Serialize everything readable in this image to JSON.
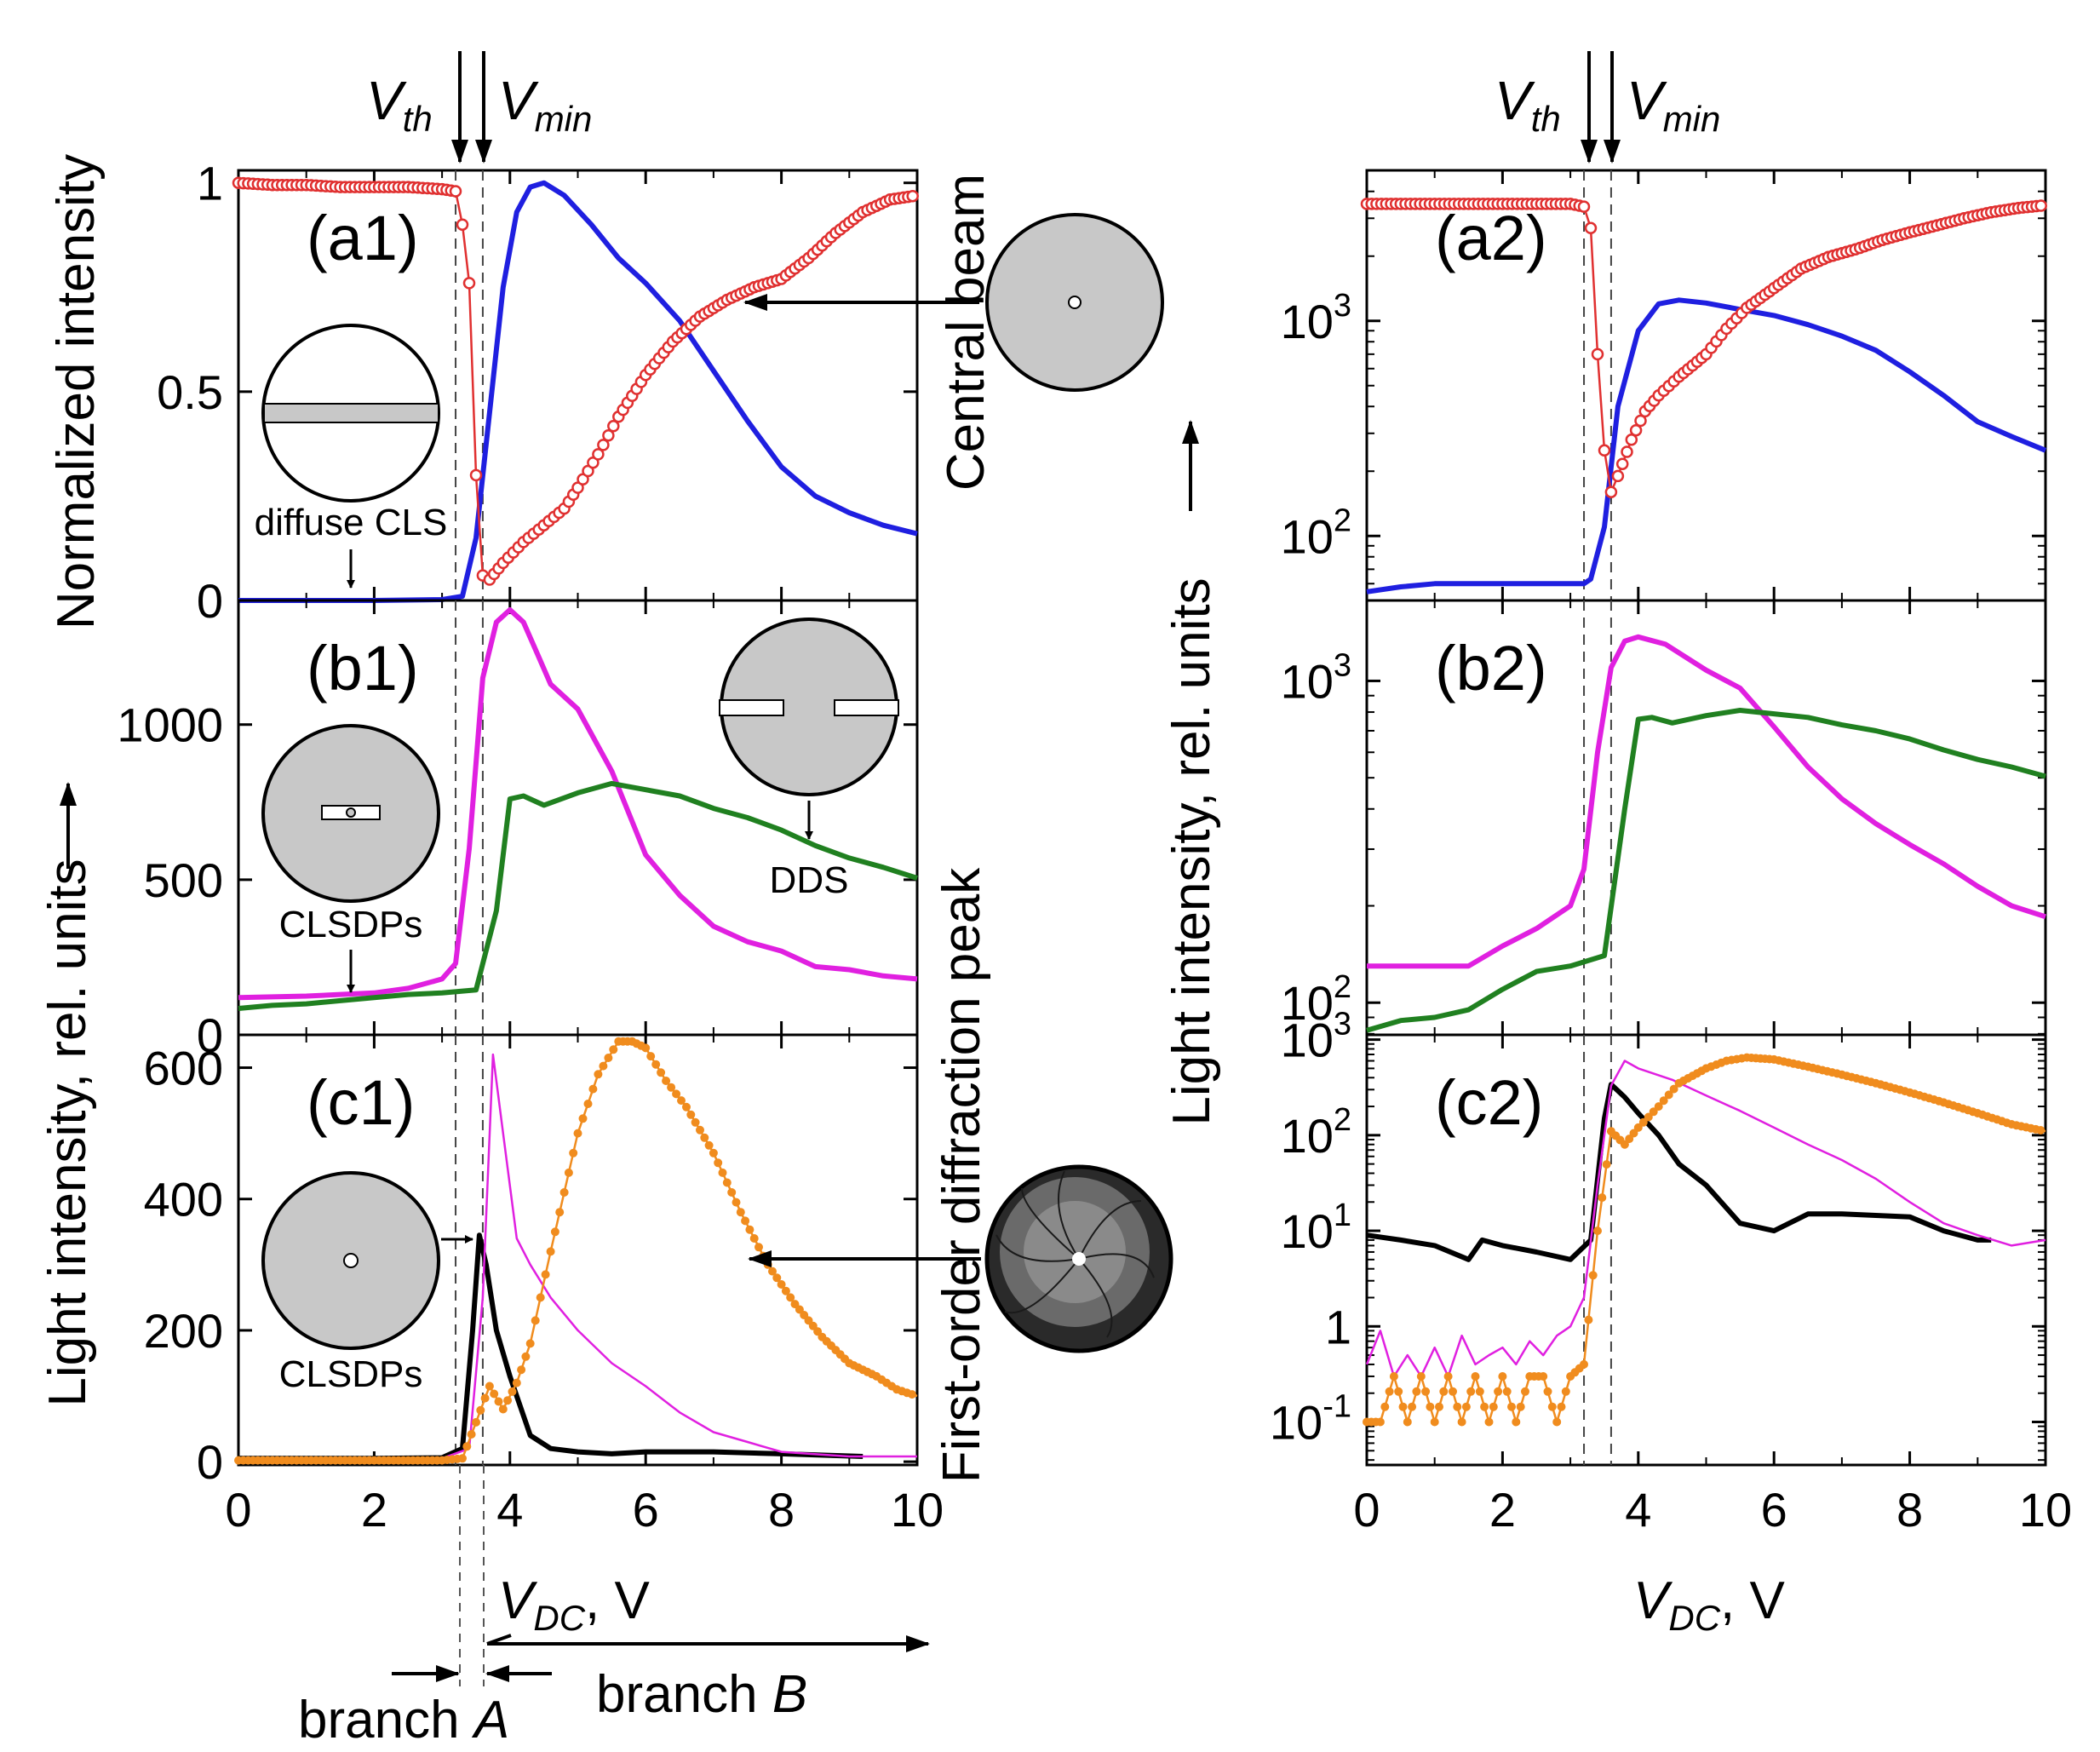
{
  "vertical_markers": {
    "vth": "V",
    "vth_sub": "th",
    "vmin": "V",
    "vmin_sub": "min",
    "vth_value": 3.2,
    "vmin_value": 3.6
  },
  "left_column": {
    "ylabel_top": "Normalized intensity",
    "ylabel_bottom": "Light intensity, rel. units",
    "xlabel_main": "V",
    "xlabel_sub": "DC",
    "xlabel_unit": ", V",
    "branch_a": "branch ",
    "branch_a_letter": "A",
    "branch_b": "branch ",
    "branch_b_letter": "B"
  },
  "right_column": {
    "ylabel": "Light intensity, rel. units",
    "xlabel_main": "V",
    "xlabel_sub": "DC",
    "xlabel_unit": ", V"
  },
  "side_labels": {
    "central_beam": "Central beam",
    "first_order": "First-order diffraction peak"
  },
  "annotations": {
    "diffuse_cls": "diffuse CLS",
    "clsdps_b1": "CLSDPs",
    "clsdps_c1": "CLSDPs",
    "dds": "DDS"
  },
  "colors": {
    "blue": "#1f1fe0",
    "red": "#e03030",
    "magenta": "#e020e0",
    "green": "#208020",
    "black": "#000000",
    "orange": "#f08c1e",
    "disk": "#c8c8c8"
  },
  "chart_data": [
    {
      "id": "a1",
      "panel_label": "(a1)",
      "type": "line",
      "xlim": [
        0,
        10
      ],
      "ylim": [
        0,
        1.03
      ],
      "yticks": [
        {
          "v": 0,
          "label": "0"
        },
        {
          "v": 0.5,
          "label": "0.5"
        },
        {
          "v": 1,
          "label": "1"
        }
      ],
      "series": [
        {
          "name": "central beam (blue)",
          "color": "#1f1fe0",
          "x": [
            0,
            1,
            2,
            3,
            3.3,
            3.5,
            3.7,
            3.9,
            4.1,
            4.3,
            4.5,
            4.8,
            5.2,
            5.6,
            6,
            6.5,
            7,
            7.5,
            8,
            8.5,
            9,
            9.5,
            10
          ],
          "y": [
            0,
            0,
            0,
            0.002,
            0.01,
            0.15,
            0.45,
            0.75,
            0.93,
            0.99,
            1,
            0.97,
            0.9,
            0.82,
            0.76,
            0.67,
            0.55,
            0.43,
            0.32,
            0.25,
            0.21,
            0.18,
            0.16
          ]
        },
        {
          "name": "central beam (red markers)",
          "color": "#e03030",
          "marker": true,
          "x": [
            0,
            0.5,
            1,
            1.5,
            2,
            2.5,
            3,
            3.2,
            3.3,
            3.4,
            3.5,
            3.6,
            3.7,
            3.9,
            4.2,
            4.5,
            4.8,
            5,
            5.3,
            5.6,
            6,
            6.4,
            6.8,
            7.2,
            7.6,
            8,
            8.4,
            8.8,
            9.2,
            9.6,
            10
          ],
          "y": [
            1,
            0.995,
            0.995,
            0.99,
            0.99,
            0.99,
            0.985,
            0.98,
            0.9,
            0.76,
            0.3,
            0.06,
            0.05,
            0.09,
            0.14,
            0.18,
            0.22,
            0.27,
            0.35,
            0.44,
            0.54,
            0.62,
            0.68,
            0.72,
            0.75,
            0.77,
            0.82,
            0.88,
            0.93,
            0.96,
            0.97
          ]
        }
      ]
    },
    {
      "id": "b1",
      "panel_label": "(b1)",
      "type": "line",
      "xlim": [
        0,
        10
      ],
      "ylim": [
        0,
        1400
      ],
      "yticks": [
        {
          "v": 0,
          "label": "0"
        },
        {
          "v": 500,
          "label": "500"
        },
        {
          "v": 1000,
          "label": "1000"
        }
      ],
      "series": [
        {
          "name": "magenta",
          "color": "#e020e0",
          "x": [
            0,
            1,
            2,
            2.5,
            3,
            3.2,
            3.4,
            3.6,
            3.8,
            4,
            4.2,
            4.4,
            4.6,
            5,
            5.5,
            6,
            6.5,
            7,
            7.5,
            8,
            8.5,
            9,
            9.5,
            10
          ],
          "y": [
            120,
            125,
            135,
            150,
            180,
            230,
            600,
            1150,
            1330,
            1370,
            1330,
            1230,
            1130,
            1050,
            850,
            580,
            450,
            350,
            300,
            270,
            220,
            210,
            190,
            180
          ]
        },
        {
          "name": "green",
          "color": "#208020",
          "x": [
            0,
            0.5,
            1,
            1.5,
            2,
            2.5,
            3,
            3.5,
            3.8,
            4,
            4.2,
            4.5,
            5,
            5.5,
            6,
            6.5,
            7,
            7.5,
            8,
            8.5,
            9,
            9.5,
            10
          ],
          "y": [
            85,
            95,
            100,
            110,
            120,
            130,
            135,
            145,
            400,
            760,
            770,
            740,
            780,
            810,
            790,
            770,
            730,
            700,
            660,
            610,
            570,
            540,
            505
          ]
        }
      ]
    },
    {
      "id": "c1",
      "panel_label": "(c1)",
      "type": "line",
      "xlim": [
        0,
        10
      ],
      "ylim": [
        -5,
        650
      ],
      "yticks": [
        {
          "v": 0,
          "label": "0"
        },
        {
          "v": 200,
          "label": "200"
        },
        {
          "v": 400,
          "label": "400"
        },
        {
          "v": 600,
          "label": "600"
        }
      ],
      "series": [
        {
          "name": "black",
          "color": "#000000",
          "x": [
            0,
            1,
            2,
            3,
            3.3,
            3.45,
            3.55,
            3.65,
            3.8,
            4,
            4.3,
            4.6,
            5,
            5.5,
            6,
            7,
            8,
            9.2
          ],
          "y": [
            5,
            5,
            5,
            6,
            20,
            200,
            345,
            300,
            200,
            130,
            40,
            20,
            15,
            12,
            15,
            15,
            12,
            8
          ]
        },
        {
          "name": "magenta thin",
          "color": "#e020e0",
          "x": [
            0,
            1,
            2,
            3,
            3.4,
            3.6,
            3.75,
            3.9,
            4.1,
            4.3,
            4.6,
            5,
            5.5,
            6,
            6.5,
            7,
            7.5,
            8,
            9,
            10
          ],
          "y": [
            5,
            5,
            5,
            5,
            20,
            250,
            620,
            500,
            340,
            300,
            250,
            200,
            150,
            115,
            75,
            45,
            30,
            15,
            8,
            8
          ]
        },
        {
          "name": "orange markers",
          "color": "#f08c1e",
          "marker": true,
          "x": [
            0,
            1,
            2,
            3,
            3.3,
            3.5,
            3.7,
            3.9,
            4.1,
            4.3,
            4.6,
            5,
            5.3,
            5.6,
            5.8,
            6,
            6.3,
            6.6,
            7,
            7.4,
            7.8,
            8.2,
            8.6,
            9,
            9.4,
            9.7,
            10
          ],
          "y": [
            2,
            2,
            2,
            2,
            5,
            60,
            115,
            80,
            120,
            180,
            320,
            500,
            590,
            640,
            640,
            630,
            580,
            540,
            470,
            380,
            300,
            240,
            190,
            150,
            130,
            110,
            100
          ]
        }
      ]
    },
    {
      "id": "a2",
      "panel_label": "(a2)",
      "type": "line",
      "scale": "log",
      "xlim": [
        0,
        10
      ],
      "ylim_log10": [
        1.7,
        3.7
      ],
      "yticks": [
        {
          "v": 2,
          "base": "10",
          "exp": "2"
        },
        {
          "v": 3,
          "base": "10",
          "exp": "3"
        }
      ],
      "series": [
        {
          "name": "blue",
          "color": "#1f1fe0",
          "x": [
            0,
            0.5,
            1,
            2,
            3,
            3.2,
            3.3,
            3.5,
            3.7,
            4,
            4.3,
            4.6,
            5,
            5.5,
            6,
            6.5,
            7,
            7.5,
            8,
            8.5,
            9,
            9.5,
            10
          ],
          "y": [
            55,
            58,
            60,
            60,
            60,
            60,
            63,
            110,
            400,
            900,
            1200,
            1250,
            1210,
            1130,
            1060,
            960,
            850,
            730,
            580,
            450,
            340,
            290,
            250
          ]
        },
        {
          "name": "red markers",
          "color": "#e03030",
          "marker": true,
          "x": [
            0,
            0.5,
            1,
            1.5,
            2,
            2.5,
            3,
            3.2,
            3.3,
            3.4,
            3.5,
            3.6,
            3.7,
            3.9,
            4.1,
            4.3,
            4.6,
            5,
            5.3,
            5.6,
            6,
            6.4,
            6.8,
            7.2,
            7.6,
            8,
            8.4,
            8.8,
            9.2,
            9.6,
            10
          ],
          "y": [
            3500,
            3500,
            3500,
            3500,
            3500,
            3500,
            3500,
            3400,
            2700,
            700,
            250,
            160,
            190,
            280,
            380,
            450,
            550,
            700,
            920,
            1150,
            1420,
            1750,
            1980,
            2150,
            2380,
            2580,
            2780,
            3000,
            3200,
            3350,
            3450
          ]
        }
      ]
    },
    {
      "id": "b2",
      "panel_label": "(b2)",
      "type": "line",
      "scale": "log",
      "xlim": [
        0,
        10
      ],
      "ylim_log10": [
        1.9,
        3.25
      ],
      "yticks": [
        {
          "v": 2,
          "base": "10",
          "exp": "2"
        },
        {
          "v": 3,
          "base": "10",
          "exp": "3"
        }
      ],
      "series": [
        {
          "name": "magenta",
          "color": "#e020e0",
          "x": [
            0,
            1,
            1.5,
            2,
            2.5,
            3,
            3.2,
            3.4,
            3.6,
            3.8,
            4,
            4.4,
            5,
            5.5,
            6,
            6.5,
            7,
            7.5,
            8,
            8.5,
            9,
            9.5,
            10
          ],
          "y": [
            130,
            130,
            130,
            150,
            170,
            200,
            260,
            600,
            1100,
            1330,
            1370,
            1300,
            1080,
            950,
            720,
            540,
            430,
            360,
            310,
            270,
            230,
            200,
            185
          ]
        },
        {
          "name": "green",
          "color": "#208020",
          "x": [
            0,
            0.5,
            1,
            1.5,
            2,
            2.5,
            3,
            3.5,
            3.8,
            4,
            4.2,
            4.5,
            5,
            5.5,
            6,
            6.5,
            7,
            7.5,
            8,
            8.5,
            9,
            9.5,
            10
          ],
          "y": [
            82,
            88,
            90,
            95,
            110,
            125,
            130,
            140,
            400,
            760,
            770,
            740,
            780,
            810,
            790,
            770,
            730,
            700,
            660,
            610,
            570,
            540,
            505
          ]
        }
      ]
    },
    {
      "id": "c2",
      "panel_label": "(c2)",
      "type": "line",
      "scale": "log",
      "xlim": [
        0,
        10
      ],
      "ylim_log10": [
        -1.45,
        3.05
      ],
      "yticks": [
        {
          "v": -1,
          "base": "10",
          "exp": "-1"
        },
        {
          "v": 0,
          "label": "1"
        },
        {
          "v": 1,
          "base": "10",
          "exp": "1"
        },
        {
          "v": 2,
          "base": "10",
          "exp": "2"
        },
        {
          "v": 3,
          "base": "10",
          "exp": "3"
        }
      ],
      "series": [
        {
          "name": "black",
          "color": "#000000",
          "x": [
            0,
            0.5,
            1,
            1.5,
            1.7,
            2,
            2.5,
            3,
            3.3,
            3.5,
            3.6,
            3.8,
            4,
            4.3,
            4.6,
            5,
            5.5,
            6,
            6.5,
            7,
            8,
            8.5,
            9,
            9.2
          ],
          "y": [
            9,
            8,
            7,
            5,
            8,
            7,
            6,
            5,
            8,
            150,
            340,
            250,
            170,
            100,
            50,
            30,
            12,
            10,
            15,
            15,
            14,
            10,
            8,
            8
          ]
        },
        {
          "name": "magenta thin",
          "color": "#e020e0",
          "x": [
            0,
            0.2,
            0.4,
            0.6,
            0.8,
            1,
            1.2,
            1.4,
            1.6,
            1.8,
            2,
            2.2,
            2.4,
            2.6,
            2.8,
            3,
            3.2,
            3.4,
            3.6,
            3.8,
            4,
            4.5,
            5,
            5.5,
            6,
            6.5,
            7,
            7.5,
            8,
            8.5,
            9,
            9.5,
            10
          ],
          "y": [
            0.4,
            0.9,
            0.3,
            0.5,
            0.3,
            0.6,
            0.3,
            0.8,
            0.4,
            0.5,
            0.6,
            0.4,
            0.7,
            0.5,
            0.8,
            1.0,
            2.0,
            30,
            330,
            600,
            500,
            380,
            260,
            180,
            120,
            80,
            55,
            35,
            20,
            12,
            9,
            7,
            8
          ]
        },
        {
          "name": "orange markers",
          "color": "#f08c1e",
          "marker": true,
          "x": [
            0,
            0.2,
            0.4,
            0.6,
            0.8,
            1,
            1.2,
            1.4,
            1.6,
            1.8,
            2,
            2.2,
            2.4,
            2.6,
            2.8,
            3,
            3.2,
            3.4,
            3.6,
            3.8,
            4,
            4.3,
            4.6,
            5,
            5.3,
            5.6,
            6,
            6.5,
            7,
            7.5,
            8,
            8.5,
            9,
            9.5,
            10
          ],
          "y": [
            0.1,
            0.1,
            0.3,
            0.1,
            0.3,
            0.1,
            0.3,
            0.1,
            0.3,
            0.1,
            0.3,
            0.1,
            0.3,
            0.3,
            0.1,
            0.3,
            0.4,
            10,
            110,
            80,
            120,
            200,
            350,
            500,
            600,
            650,
            620,
            520,
            430,
            350,
            280,
            220,
            170,
            130,
            110
          ]
        }
      ]
    }
  ]
}
